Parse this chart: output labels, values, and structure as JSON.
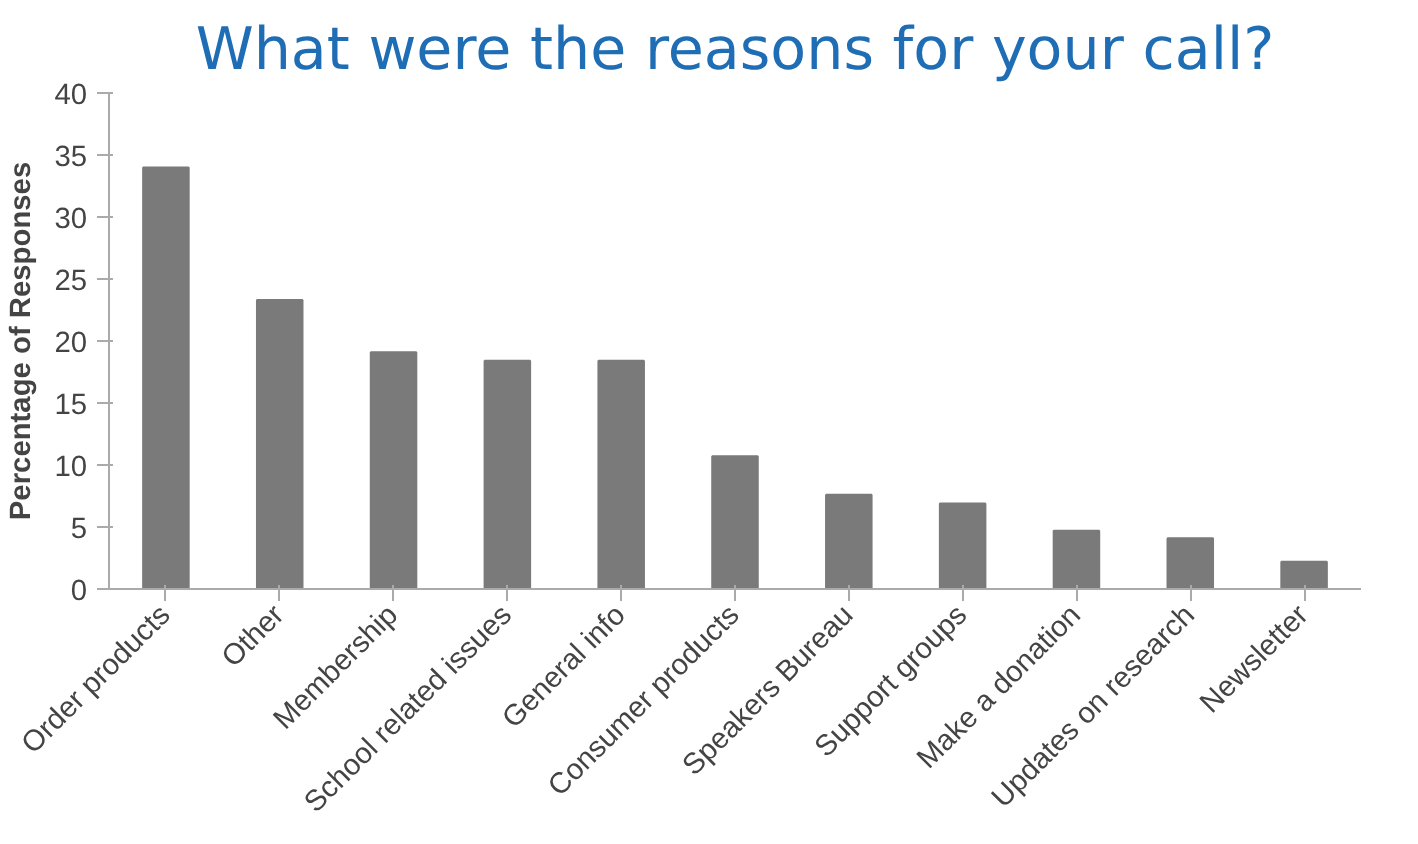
{
  "chart_data": {
    "type": "bar",
    "title": "What were the reasons for your call?",
    "ylabel": "Percentage of Responses",
    "categories": [
      "Order products",
      "Other",
      "Membership",
      "School related issues",
      "General info",
      "Consumer products",
      "Speakers Bureau",
      "Support groups",
      "Make a donation",
      "Updates on research",
      "Newsletter"
    ],
    "values": [
      34.0,
      23.3,
      19.1,
      18.4,
      18.4,
      10.7,
      7.6,
      6.9,
      4.7,
      4.1,
      2.2
    ],
    "color": "#7a7a7a",
    "ylim": [
      0,
      40
    ],
    "yticks": [
      0,
      5,
      10,
      15,
      20,
      25,
      30,
      35,
      40
    ],
    "grid": false
  }
}
